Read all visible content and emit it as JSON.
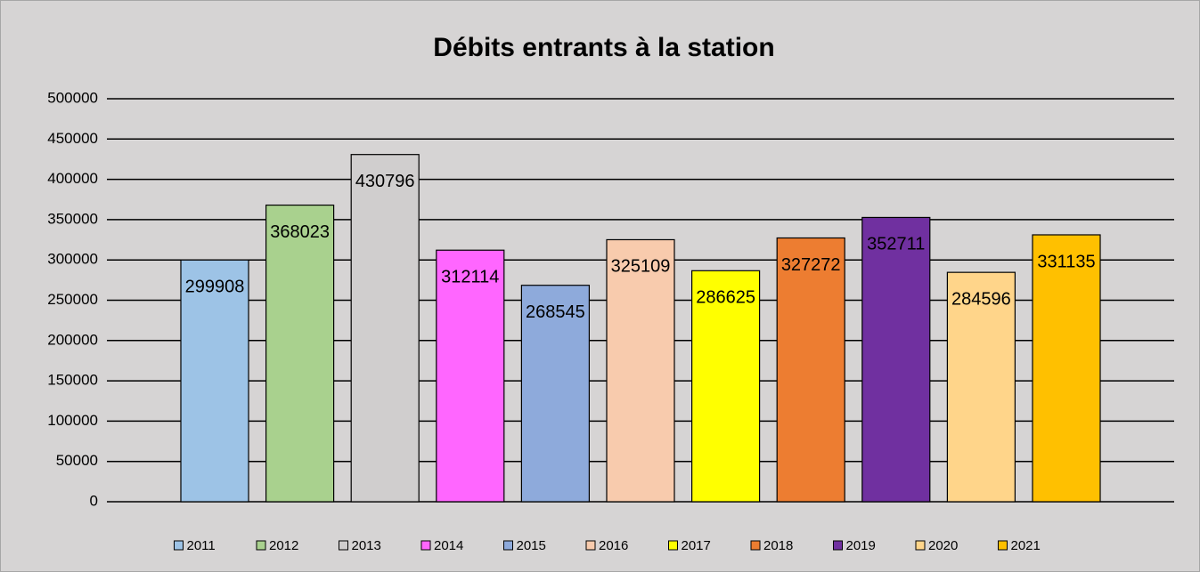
{
  "chart_data": {
    "type": "bar",
    "title": "Débits entrants à la station",
    "categories": [
      null
    ],
    "series": [
      {
        "name": "2011",
        "color": "#9dc3e6",
        "values": [
          299908
        ]
      },
      {
        "name": "2012",
        "color": "#a9d18e",
        "values": [
          368023
        ]
      },
      {
        "name": "2013",
        "color": "#d0cece",
        "values": [
          430796
        ]
      },
      {
        "name": "2014",
        "color": "#ff66ff",
        "values": [
          312114
        ]
      },
      {
        "name": "2015",
        "color": "#8eaadb",
        "values": [
          268545
        ]
      },
      {
        "name": "2016",
        "color": "#f8cbad",
        "values": [
          325109
        ]
      },
      {
        "name": "2017",
        "color": "#ffff00",
        "values": [
          286625
        ]
      },
      {
        "name": "2018",
        "color": "#ed7d31",
        "values": [
          327272
        ]
      },
      {
        "name": "2019",
        "color": "#7030a0",
        "values": [
          352711
        ]
      },
      {
        "name": "2020",
        "color": "#ffd58a",
        "values": [
          284596
        ]
      },
      {
        "name": "2021",
        "color": "#ffc000",
        "values": [
          331135
        ]
      }
    ],
    "ylim": [
      0,
      500000
    ],
    "yticks": [
      0,
      50000,
      100000,
      150000,
      200000,
      250000,
      300000,
      350000,
      400000,
      450000,
      500000
    ],
    "grid": true,
    "data_labels": true,
    "legend": "bottom"
  }
}
